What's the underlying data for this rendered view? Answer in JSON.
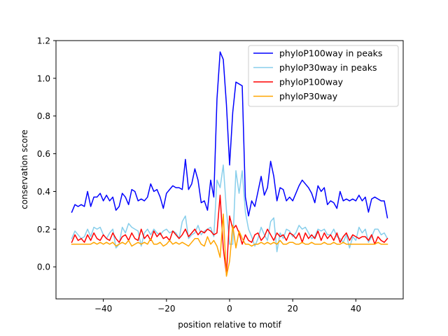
{
  "chart_data": {
    "type": "line",
    "title": "",
    "xlabel": "position relative to motif",
    "ylabel": "conservation score",
    "xlim": [
      -55,
      55
    ],
    "ylim": [
      -0.17,
      1.2
    ],
    "xticks": [
      -40,
      -20,
      0,
      20,
      40
    ],
    "xtick_labels": [
      "−40",
      "−20",
      "0",
      "20",
      "40"
    ],
    "yticks": [
      0.0,
      0.2,
      0.4,
      0.6,
      0.8,
      1.0,
      1.2
    ],
    "ytick_labels": [
      "0.0",
      "0.2",
      "0.4",
      "0.6",
      "0.8",
      "1.0",
      "1.2"
    ],
    "grid": false,
    "legend_position": "top-right",
    "x": [
      -50,
      -49,
      -48,
      -47,
      -46,
      -45,
      -44,
      -43,
      -42,
      -41,
      -40,
      -39,
      -38,
      -37,
      -36,
      -35,
      -34,
      -33,
      -32,
      -31,
      -30,
      -29,
      -28,
      -27,
      -26,
      -25,
      -24,
      -23,
      -22,
      -21,
      -20,
      -19,
      -18,
      -17,
      -16,
      -15,
      -14,
      -13,
      -12,
      -11,
      -10,
      -9,
      -8,
      -7,
      -6,
      -5,
      -4,
      -3,
      -2,
      -1,
      0,
      1,
      2,
      3,
      4,
      5,
      6,
      7,
      8,
      9,
      10,
      11,
      12,
      13,
      14,
      15,
      16,
      17,
      18,
      19,
      20,
      21,
      22,
      23,
      24,
      25,
      26,
      27,
      28,
      29,
      30,
      31,
      32,
      33,
      34,
      35,
      36,
      37,
      38,
      39,
      40,
      41,
      42,
      43,
      44,
      45,
      46,
      47,
      48,
      49,
      50
    ],
    "series": [
      {
        "name": "phyloP100way in peaks",
        "color": "#0000ff",
        "values": [
          0.29,
          0.33,
          0.32,
          0.33,
          0.32,
          0.4,
          0.32,
          0.37,
          0.37,
          0.39,
          0.35,
          0.38,
          0.35,
          0.37,
          0.3,
          0.32,
          0.39,
          0.37,
          0.33,
          0.41,
          0.4,
          0.35,
          0.36,
          0.35,
          0.37,
          0.44,
          0.4,
          0.41,
          0.37,
          0.31,
          0.39,
          0.41,
          0.43,
          0.42,
          0.42,
          0.41,
          0.57,
          0.41,
          0.44,
          0.52,
          0.46,
          0.34,
          0.35,
          0.3,
          0.46,
          0.37,
          0.89,
          1.14,
          1.1,
          0.86,
          0.54,
          0.82,
          0.98,
          0.97,
          0.96,
          0.37,
          0.27,
          0.35,
          0.32,
          0.4,
          0.48,
          0.38,
          0.42,
          0.56,
          0.48,
          0.35,
          0.42,
          0.41,
          0.35,
          0.37,
          0.35,
          0.39,
          0.43,
          0.46,
          0.44,
          0.42,
          0.39,
          0.34,
          0.43,
          0.4,
          0.42,
          0.33,
          0.35,
          0.34,
          0.31,
          0.4,
          0.35,
          0.36,
          0.35,
          0.36,
          0.35,
          0.38,
          0.35,
          0.37,
          0.29,
          0.36,
          0.37,
          0.36,
          0.35,
          0.35,
          0.26
        ]
      },
      {
        "name": "phyloP30way in peaks",
        "color": "#87ceeb",
        "values": [
          0.15,
          0.19,
          0.17,
          0.15,
          0.16,
          0.2,
          0.16,
          0.21,
          0.2,
          0.21,
          0.17,
          0.15,
          0.18,
          0.2,
          0.1,
          0.12,
          0.21,
          0.18,
          0.23,
          0.21,
          0.2,
          0.19,
          0.11,
          0.18,
          0.2,
          0.17,
          0.2,
          0.18,
          0.17,
          0.19,
          0.2,
          0.18,
          0.19,
          0.18,
          0.15,
          0.24,
          0.27,
          0.15,
          0.17,
          0.18,
          0.22,
          0.17,
          0.19,
          0.2,
          0.21,
          0.16,
          0.46,
          0.42,
          0.54,
          0.3,
          0.12,
          0.12,
          0.51,
          0.39,
          0.51,
          0.29,
          0.2,
          0.16,
          0.11,
          0.15,
          0.21,
          0.17,
          0.14,
          0.24,
          0.26,
          0.08,
          0.18,
          0.15,
          0.2,
          0.19,
          0.16,
          0.18,
          0.22,
          0.2,
          0.21,
          0.18,
          0.15,
          0.16,
          0.2,
          0.19,
          0.2,
          0.17,
          0.17,
          0.2,
          0.16,
          0.15,
          0.13,
          0.17,
          0.1,
          0.16,
          0.14,
          0.21,
          0.18,
          0.2,
          0.13,
          0.16,
          0.2,
          0.2,
          0.17,
          0.18,
          0.15
        ]
      },
      {
        "name": "phyloP100way",
        "color": "#ff0000",
        "values": [
          0.13,
          0.17,
          0.14,
          0.15,
          0.13,
          0.17,
          0.14,
          0.18,
          0.15,
          0.14,
          0.17,
          0.15,
          0.14,
          0.18,
          0.15,
          0.13,
          0.16,
          0.17,
          0.14,
          0.18,
          0.15,
          0.14,
          0.2,
          0.15,
          0.17,
          0.14,
          0.19,
          0.16,
          0.18,
          0.15,
          0.16,
          0.14,
          0.19,
          0.17,
          0.15,
          0.17,
          0.2,
          0.16,
          0.18,
          0.2,
          0.17,
          0.19,
          0.18,
          0.2,
          0.19,
          0.17,
          0.18,
          0.38,
          0.1,
          -0.04,
          0.27,
          0.2,
          0.22,
          0.18,
          0.12,
          0.17,
          0.14,
          0.13,
          0.17,
          0.18,
          0.14,
          0.16,
          0.2,
          0.17,
          0.14,
          0.18,
          0.16,
          0.17,
          0.14,
          0.18,
          0.17,
          0.15,
          0.18,
          0.13,
          0.18,
          0.15,
          0.17,
          0.15,
          0.19,
          0.14,
          0.18,
          0.15,
          0.17,
          0.14,
          0.18,
          0.13,
          0.16,
          0.18,
          0.14,
          0.17,
          0.16,
          0.15,
          0.16,
          0.16,
          0.14,
          0.17,
          0.12,
          0.16,
          0.14,
          0.13,
          0.15
        ]
      },
      {
        "name": "phyloP30way",
        "color": "#ffa500",
        "values": [
          0.12,
          0.12,
          0.12,
          0.12,
          0.12,
          0.12,
          0.12,
          0.13,
          0.12,
          0.13,
          0.12,
          0.13,
          0.12,
          0.13,
          0.11,
          0.12,
          0.13,
          0.12,
          0.14,
          0.11,
          0.12,
          0.13,
          0.12,
          0.13,
          0.12,
          0.15,
          0.12,
          0.12,
          0.13,
          0.11,
          0.12,
          0.14,
          0.12,
          0.13,
          0.12,
          0.13,
          0.12,
          0.11,
          0.13,
          0.15,
          0.15,
          0.12,
          0.11,
          0.16,
          0.12,
          0.14,
          0.11,
          0.05,
          0.28,
          -0.05,
          0.03,
          0.22,
          0.1,
          0.19,
          0.15,
          0.12,
          0.12,
          0.11,
          0.12,
          0.12,
          0.13,
          0.12,
          0.13,
          0.12,
          0.13,
          0.12,
          0.14,
          0.12,
          0.12,
          0.13,
          0.13,
          0.12,
          0.12,
          0.13,
          0.12,
          0.12,
          0.13,
          0.12,
          0.12,
          0.12,
          0.13,
          0.12,
          0.12,
          0.13,
          0.12,
          0.12,
          0.13,
          0.12,
          0.12,
          0.12,
          0.12,
          0.12,
          0.12,
          0.12,
          0.12,
          0.12,
          0.12,
          0.13,
          0.12,
          0.12,
          0.12
        ]
      }
    ]
  }
}
